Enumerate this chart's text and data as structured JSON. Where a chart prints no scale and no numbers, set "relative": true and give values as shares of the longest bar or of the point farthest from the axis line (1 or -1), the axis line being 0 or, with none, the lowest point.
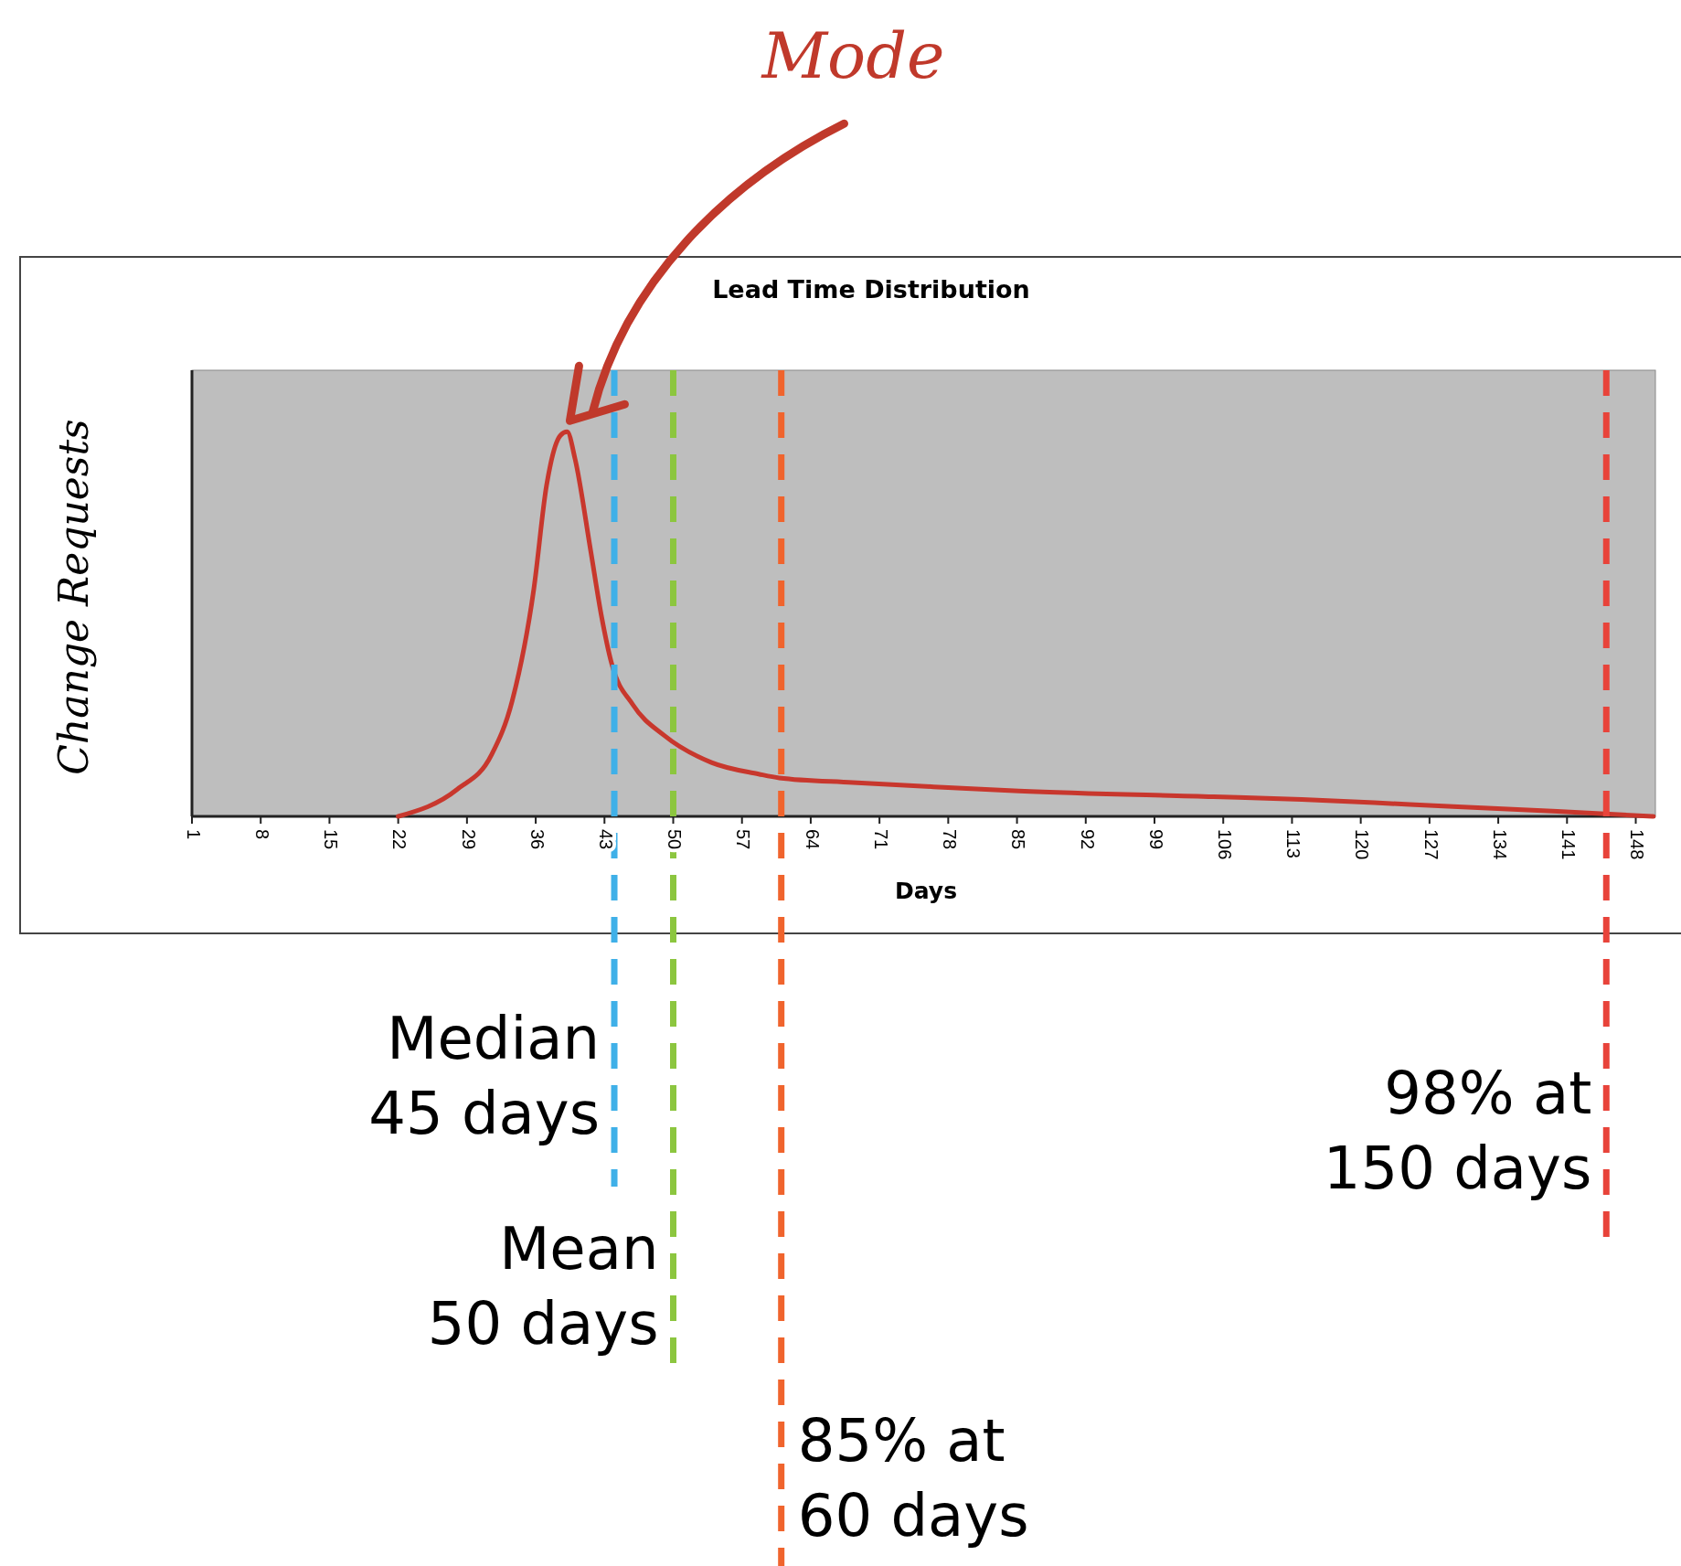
{
  "chart_data": {
    "type": "line",
    "title": "Lead Time Distribution",
    "xlabel": "Days",
    "ylabel": "Change Requests",
    "relative": true,
    "xlim": [
      1,
      150
    ],
    "xticks": [
      1,
      8,
      15,
      22,
      29,
      36,
      43,
      50,
      57,
      64,
      71,
      78,
      85,
      92,
      99,
      106,
      113,
      120,
      127,
      134,
      141,
      148
    ],
    "marker": "none",
    "line_style": "solid",
    "series": [
      {
        "color": "#c8372d",
        "x": [
          22,
          28,
          31.5,
          33.6,
          35.8,
          37.1,
          38.5,
          39.2,
          40,
          41.6,
          42.7,
          43.7,
          45.9,
          49.1,
          53.9,
          58.7,
          60.8,
          68.3,
          78,
          85.2,
          105,
          114,
          125,
          140,
          149.8
        ],
        "values": [
          0,
          0.07,
          0.16,
          0.3,
          0.59,
          0.86,
          0.99,
          1,
          0.93,
          0.69,
          0.52,
          0.4,
          0.29,
          0.21,
          0.14,
          0.11,
          0.1,
          0.088,
          0.075,
          0.066,
          0.051,
          0.044,
          0.031,
          0.013,
          0
        ]
      }
    ],
    "ref_lines": [
      {
        "axis": "x",
        "value": 44,
        "label": "Median\n45 days",
        "color": "#3fb0e8",
        "line_style": "dashed"
      },
      {
        "axis": "x",
        "value": 50,
        "label": "Mean\n50 days",
        "color": "#8cc63f",
        "line_style": "dashed"
      },
      {
        "axis": "x",
        "value": 61,
        "label": "85% at\n60 days",
        "color": "#f0642d",
        "line_style": "dashed"
      },
      {
        "axis": "x",
        "value": 145,
        "label": "98% at\n150 days",
        "color": "#e8433a",
        "line_style": "dashed"
      }
    ],
    "annotations": [
      "Mode"
    ]
  }
}
